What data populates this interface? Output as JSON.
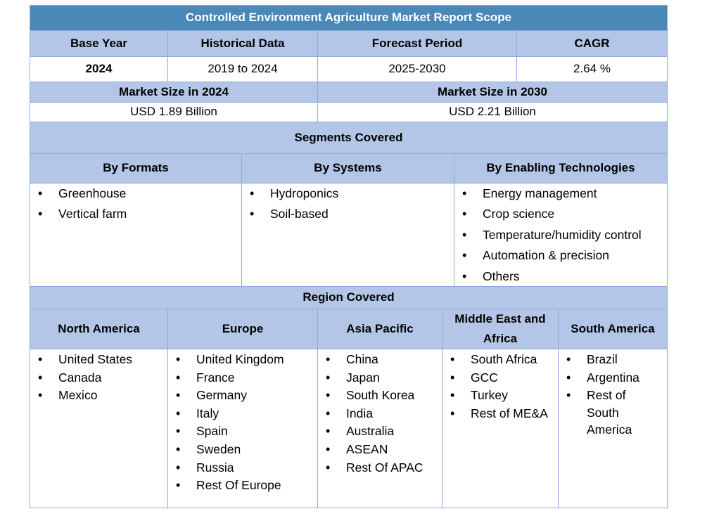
{
  "title": "Controlled Environment Agriculture Market Report Scope",
  "summary_headers": [
    "Base Year",
    "Historical Data",
    "Forecast Period",
    "CAGR"
  ],
  "summary_values": [
    "2024",
    "2019 to 2024",
    "2025-2030",
    "2.64 %"
  ],
  "market_size": {
    "label_2024": "Market Size in 2024",
    "label_2030": "Market Size in 2030",
    "value_2024": "USD 1.89 Billion",
    "value_2030": "USD 2.21 Billion"
  },
  "segments": {
    "heading": "Segments Covered",
    "columns": [
      {
        "title": "By Formats",
        "items": [
          "Greenhouse",
          "Vertical farm"
        ]
      },
      {
        "title": "By Systems",
        "items": [
          "Hydroponics",
          "Soil-based"
        ]
      },
      {
        "title": "By Enabling Technologies",
        "items": [
          "Energy management",
          "Crop science",
          "Temperature/humidity control",
          "Automation & precision",
          "Others"
        ]
      }
    ]
  },
  "regions": {
    "heading": "Region Covered",
    "columns": [
      {
        "title": "North America",
        "items": [
          "United States",
          "Canada",
          "Mexico"
        ]
      },
      {
        "title": "Europe",
        "items": [
          "United Kingdom",
          "France",
          "Germany",
          "Italy",
          "Spain",
          "Sweden",
          "Russia",
          "Rest Of Europe"
        ]
      },
      {
        "title": "Asia Pacific",
        "items": [
          "China",
          "Japan",
          "South Korea",
          "India",
          "Australia",
          "ASEAN",
          "Rest Of APAC"
        ]
      },
      {
        "title": "Middle East and Africa",
        "items": [
          "South Africa",
          "GCC",
          "Turkey",
          "Rest of ME&A"
        ]
      },
      {
        "title": "South America",
        "items": [
          "Brazil",
          "Argentina",
          "Rest of South America"
        ]
      }
    ]
  },
  "colors": {
    "title_bg": "#4a88b8",
    "header_bg": "#b4c6e7",
    "border": "#8eaadb"
  }
}
